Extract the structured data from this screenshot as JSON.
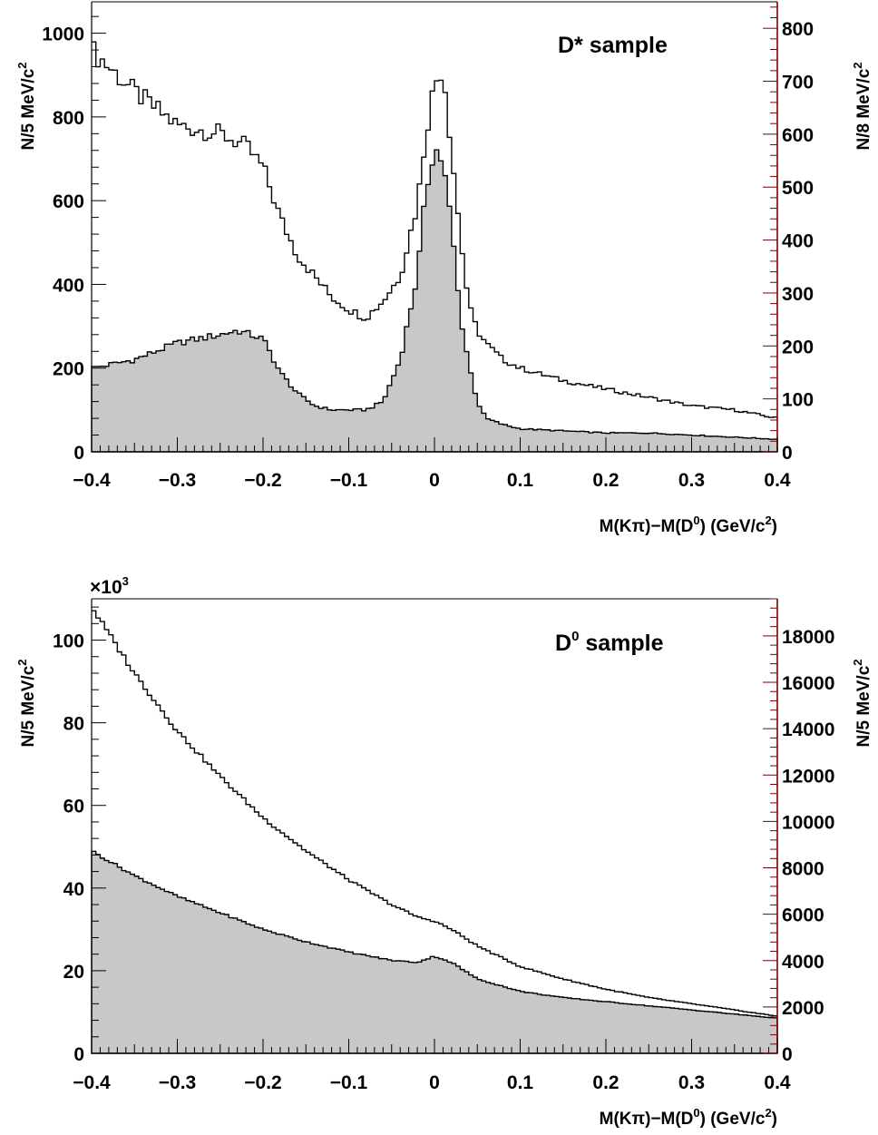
{
  "chart_data": [
    {
      "type": "histogram",
      "sample_label": "D* sample",
      "sample_sup": "",
      "xlabel_parts": [
        "M(K",
        "π",
        ")−M(D",
        "0",
        ") (GeV/c",
        "2",
        ")"
      ],
      "ylabel_left": {
        "main": "N/5 MeV/c",
        "sup": "2"
      },
      "ylabel_right": {
        "main": "N/8 MeV/c",
        "sup": "2"
      },
      "multiplier": "",
      "xlim": [
        -0.4,
        0.4
      ],
      "ylim_left": [
        0,
        1075
      ],
      "ylim_right": [
        0,
        850
      ],
      "x_ticks": [
        -0.4,
        -0.3,
        -0.2,
        -0.1,
        0,
        0.1,
        0.2,
        0.3,
        0.4
      ],
      "x_tick_labels": [
        "−0.4",
        "−0.3",
        "−0.2",
        "−0.1",
        "0",
        "0.1",
        "0.2",
        "0.3",
        "0.4"
      ],
      "y_left_ticks": [
        0,
        200,
        400,
        600,
        800,
        1000
      ],
      "y_left_tick_labels": [
        "0",
        "200",
        "400",
        "600",
        "800",
        "1000"
      ],
      "y_right_ticks": [
        0,
        100,
        200,
        300,
        400,
        500,
        600,
        700,
        800
      ],
      "y_right_tick_labels": [
        "0",
        "100",
        "200",
        "300",
        "400",
        "500",
        "600",
        "700",
        "800"
      ],
      "series": [
        {
          "style": "outline",
          "axis": "left",
          "x": [
            -0.4,
            -0.35,
            -0.3,
            -0.25,
            -0.22,
            -0.2,
            -0.18,
            -0.16,
            -0.14,
            -0.12,
            -0.1,
            -0.08,
            -0.06,
            -0.04,
            -0.02,
            -0.01,
            0,
            0.01,
            0.02,
            0.03,
            0.04,
            0.05,
            0.06,
            0.08,
            0.1,
            0.15,
            0.2,
            0.25,
            0.3,
            0.35,
            0.4
          ],
          "values": [
            960,
            860,
            780,
            760,
            730,
            680,
            560,
            470,
            420,
            370,
            340,
            320,
            360,
            420,
            590,
            760,
            880,
            920,
            720,
            520,
            350,
            290,
            260,
            220,
            200,
            170,
            150,
            130,
            110,
            100,
            80
          ]
        },
        {
          "style": "filled",
          "axis": "left",
          "x": [
            -0.4,
            -0.35,
            -0.3,
            -0.25,
            -0.23,
            -0.2,
            -0.18,
            -0.16,
            -0.14,
            -0.12,
            -0.1,
            -0.08,
            -0.06,
            -0.04,
            -0.02,
            -0.01,
            0,
            0.01,
            0.02,
            0.03,
            0.04,
            0.05,
            0.06,
            0.08,
            0.1,
            0.15,
            0.2,
            0.25,
            0.3,
            0.35,
            0.4
          ],
          "values": [
            200,
            220,
            260,
            280,
            290,
            270,
            190,
            140,
            110,
            100,
            100,
            100,
            120,
            220,
            420,
            620,
            730,
            690,
            540,
            330,
            210,
            120,
            80,
            65,
            55,
            50,
            45,
            45,
            40,
            35,
            30
          ]
        }
      ]
    },
    {
      "type": "histogram",
      "sample_label": "D",
      "sample_sup": "0",
      "sample_after": " sample",
      "xlabel_parts": [
        "M(K",
        "π",
        ")−M(D",
        "0",
        ") (GeV/c",
        "2",
        ")"
      ],
      "ylabel_left": {
        "main": "N/5 MeV/c",
        "sup": "2"
      },
      "ylabel_right": {
        "main": "N/5 MeV/c",
        "sup": "2"
      },
      "multiplier": {
        "prefix": "×10",
        "sup": "3"
      },
      "xlim": [
        -0.4,
        0.4
      ],
      "ylim_left": [
        0,
        110
      ],
      "ylim_right": [
        0,
        19600
      ],
      "x_ticks": [
        -0.4,
        -0.3,
        -0.2,
        -0.1,
        0,
        0.1,
        0.2,
        0.3,
        0.4
      ],
      "x_tick_labels": [
        "−0.4",
        "−0.3",
        "−0.2",
        "−0.1",
        "0",
        "0.1",
        "0.2",
        "0.3",
        "0.4"
      ],
      "y_left_ticks": [
        0,
        20,
        40,
        60,
        80,
        100
      ],
      "y_left_tick_labels": [
        "0",
        "20",
        "40",
        "60",
        "80",
        "100"
      ],
      "y_right_ticks": [
        0,
        2000,
        4000,
        6000,
        8000,
        10000,
        12000,
        14000,
        16000,
        18000
      ],
      "y_right_tick_labels": [
        "0",
        "2000",
        "4000",
        "6000",
        "8000",
        "10000",
        "12000",
        "14000",
        "16000",
        "18000"
      ],
      "series": [
        {
          "style": "outline",
          "axis": "left",
          "x": [
            -0.4,
            -0.35,
            -0.3,
            -0.25,
            -0.2,
            -0.15,
            -0.1,
            -0.05,
            -0.02,
            0,
            0.02,
            0.05,
            0.1,
            0.15,
            0.2,
            0.25,
            0.3,
            0.35,
            0.4
          ],
          "values": [
            108,
            92,
            78,
            67,
            57,
            49,
            42,
            36,
            33,
            32,
            30,
            26,
            21,
            18,
            15.5,
            13.5,
            12,
            10.5,
            9
          ]
        },
        {
          "style": "filled",
          "axis": "left",
          "x": [
            -0.4,
            -0.35,
            -0.3,
            -0.25,
            -0.2,
            -0.15,
            -0.1,
            -0.05,
            -0.02,
            0,
            0.02,
            0.05,
            0.1,
            0.15,
            0.2,
            0.25,
            0.3,
            0.35,
            0.4
          ],
          "values": [
            49,
            43,
            38,
            34,
            30,
            27,
            24.5,
            22.5,
            22,
            23.5,
            22,
            18,
            15,
            13.5,
            12.5,
            11.5,
            10.5,
            9.5,
            8.5
          ]
        }
      ]
    }
  ],
  "colors": {
    "fill": "#c8c8c8",
    "line": "#000000",
    "right_axis": "#7a0000"
  }
}
